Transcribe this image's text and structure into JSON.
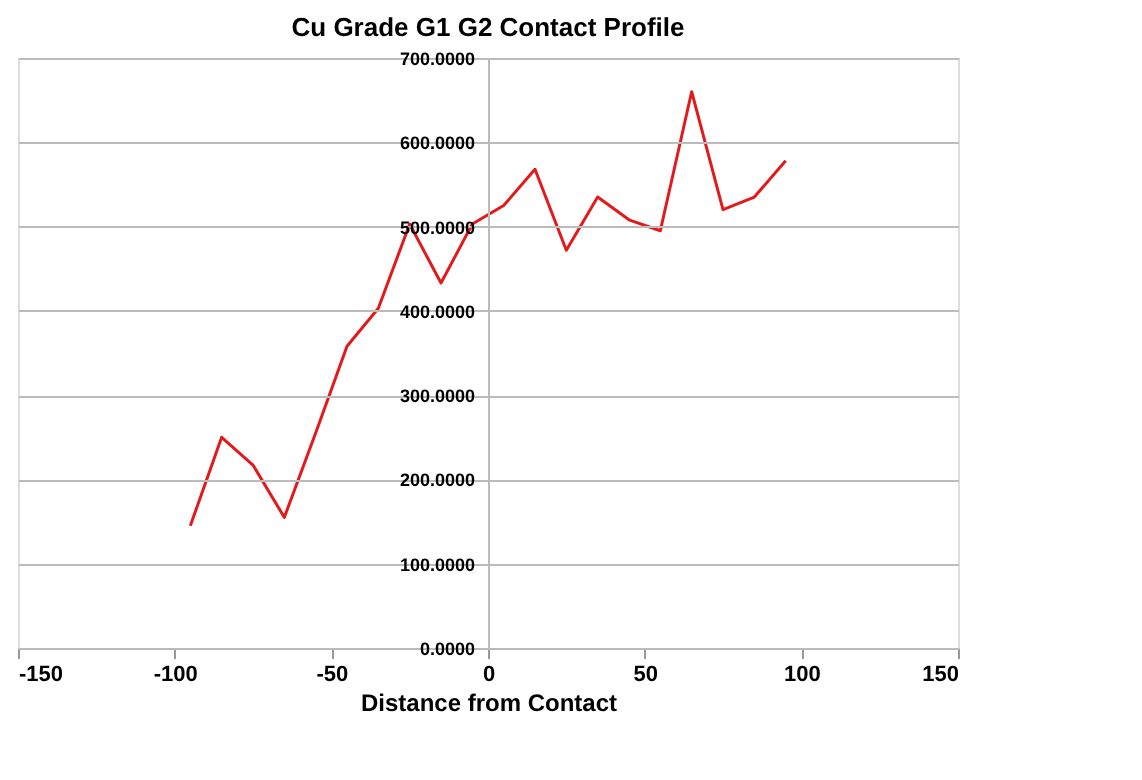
{
  "chart_data": {
    "type": "line",
    "title": "Cu Grade G1 G2 Contact Profile",
    "xlabel": "Distance from Contact",
    "x": [
      -95,
      -85,
      -75,
      -65,
      -55,
      -45,
      -35,
      -25,
      -15,
      -5,
      5,
      15,
      25,
      35,
      45,
      55,
      65,
      75,
      85,
      95
    ],
    "series": [
      {
        "color": "#e31a1c",
        "values": [
          145,
          250,
          217,
          155,
          255,
          358,
          403,
          503,
          433,
          503,
          525,
          568,
          472,
          535,
          508,
          495,
          660,
          520,
          535,
          578
        ]
      }
    ],
    "xlim": [
      -150,
      150
    ],
    "xticks": [
      -150,
      -100,
      -50,
      0,
      50,
      100,
      150
    ],
    "ylim": [
      0,
      700
    ],
    "yticks": [
      {
        "value": 0,
        "label": "0.0000"
      },
      {
        "value": 100,
        "label": "100.0000"
      },
      {
        "value": 200,
        "label": "200.0000"
      },
      {
        "value": 300,
        "label": "300.0000"
      },
      {
        "value": 400,
        "label": "400.0000"
      },
      {
        "value": 500,
        "label": "500.0000"
      },
      {
        "value": 600,
        "label": "600.0000"
      },
      {
        "value": 700,
        "label": "700.0000"
      }
    ],
    "grid": "y",
    "marker": "none",
    "line_style": "solid"
  }
}
